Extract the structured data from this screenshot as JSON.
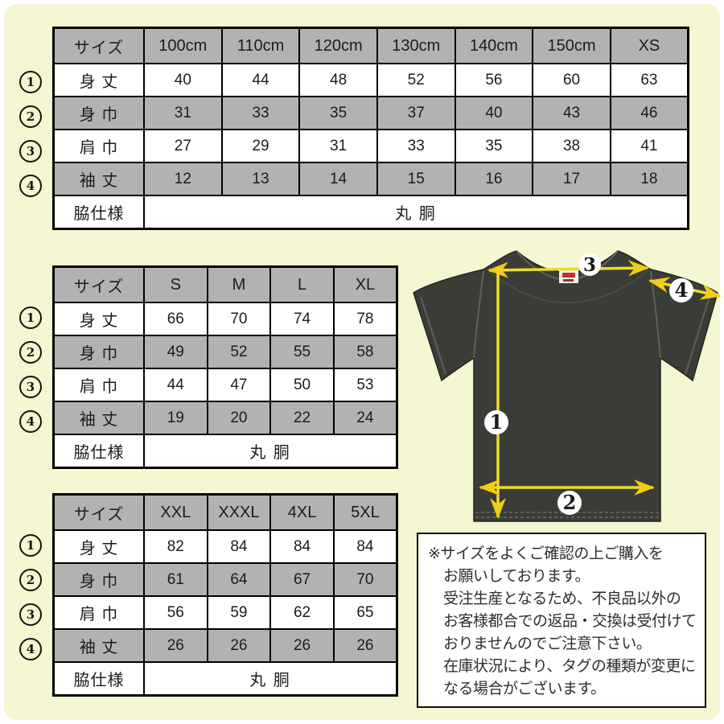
{
  "colors": {
    "background": "#f5f6d2",
    "table_gray": "#b2b2b2",
    "arrow_yellow": "#f2d51b",
    "shirt_body": "#3a3d37",
    "tag_red": "#c4322e"
  },
  "tables": [
    {
      "name": "kids",
      "headers": [
        "サイズ",
        "100cm",
        "110cm",
        "120cm",
        "130cm",
        "140cm",
        "150cm",
        "XS"
      ],
      "rows": [
        {
          "num": "1",
          "label": "身 丈",
          "values": [
            "40",
            "44",
            "48",
            "52",
            "56",
            "60",
            "63"
          ]
        },
        {
          "num": "2",
          "label": "身 巾",
          "values": [
            "31",
            "33",
            "35",
            "37",
            "40",
            "43",
            "46"
          ]
        },
        {
          "num": "3",
          "label": "肩 巾",
          "values": [
            "27",
            "29",
            "31",
            "33",
            "35",
            "38",
            "41"
          ]
        },
        {
          "num": "4",
          "label": "袖 丈",
          "values": [
            "12",
            "13",
            "14",
            "15",
            "16",
            "17",
            "18"
          ]
        }
      ],
      "footer": {
        "label": "脇仕様",
        "value": "丸 胴"
      }
    },
    {
      "name": "adult",
      "headers": [
        "サイズ",
        "S",
        "M",
        "L",
        "XL"
      ],
      "rows": [
        {
          "num": "1",
          "label": "身 丈",
          "values": [
            "66",
            "70",
            "74",
            "78"
          ]
        },
        {
          "num": "2",
          "label": "身 巾",
          "values": [
            "49",
            "52",
            "55",
            "58"
          ]
        },
        {
          "num": "3",
          "label": "肩 巾",
          "values": [
            "44",
            "47",
            "50",
            "53"
          ]
        },
        {
          "num": "4",
          "label": "袖 丈",
          "values": [
            "19",
            "20",
            "22",
            "24"
          ]
        }
      ],
      "footer": {
        "label": "脇仕様",
        "value": "丸 胴"
      }
    },
    {
      "name": "big",
      "headers": [
        "サイズ",
        "XXL",
        "XXXL",
        "4XL",
        "5XL"
      ],
      "rows": [
        {
          "num": "1",
          "label": "身 丈",
          "values": [
            "82",
            "84",
            "84",
            "84"
          ]
        },
        {
          "num": "2",
          "label": "身 巾",
          "values": [
            "61",
            "64",
            "67",
            "70"
          ]
        },
        {
          "num": "3",
          "label": "肩 巾",
          "values": [
            "56",
            "59",
            "62",
            "65"
          ]
        },
        {
          "num": "4",
          "label": "袖 丈",
          "values": [
            "26",
            "26",
            "26",
            "26"
          ]
        }
      ],
      "footer": {
        "label": "脇仕様",
        "value": "丸 胴"
      }
    }
  ],
  "shirt": {
    "markers": {
      "body_length": "1",
      "body_width": "2",
      "shoulder_width": "3",
      "sleeve_length": "4"
    }
  },
  "note": {
    "lines": [
      "※サイズをよくご確認の上ご購入を",
      "お願いしております。",
      "受注生産となるため、不良品以外の",
      "お客様都合での返品・交換は受付けて",
      "おりませんのでご注意下さい。",
      "在庫状況により、タグの種類が変更に",
      "なる場合がございます。"
    ]
  }
}
